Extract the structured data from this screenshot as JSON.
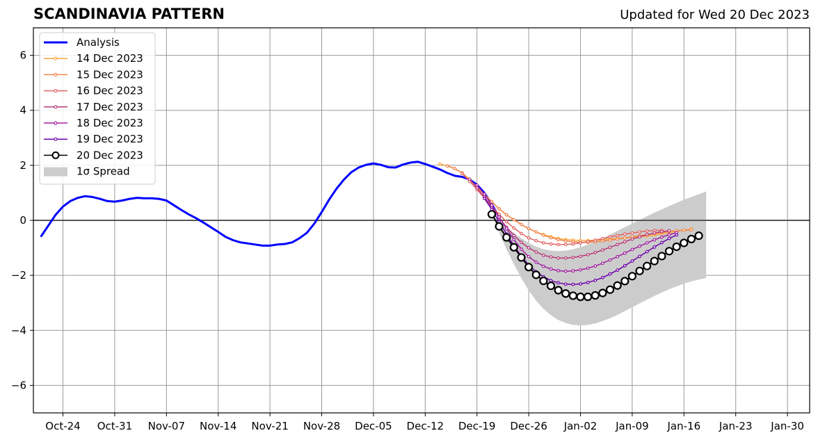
{
  "header": {
    "title": "SCANDINAVIA PATTERN",
    "subtitle": "Updated for Wed 20 Dec 2023"
  },
  "chart_data": {
    "type": "line",
    "title": "SCANDINAVIA PATTERN",
    "xlim": [
      "2023-10-20",
      "2024-02-02"
    ],
    "ylim": [
      -7,
      7
    ],
    "xticks": [
      "2023-10-24",
      "2023-10-31",
      "2023-11-07",
      "2023-11-14",
      "2023-11-21",
      "2023-11-28",
      "2023-12-05",
      "2023-12-12",
      "2023-12-19",
      "2023-12-26",
      "2024-01-02",
      "2024-01-09",
      "2024-01-16",
      "2024-01-23",
      "2024-01-30"
    ],
    "xtick_labels": [
      "Oct-24",
      "Oct-31",
      "Nov-07",
      "Nov-14",
      "Nov-21",
      "Nov-28",
      "Dec-05",
      "Dec-12",
      "Dec-19",
      "Dec-26",
      "Jan-02",
      "Jan-09",
      "Jan-16",
      "Jan-23",
      "Jan-30"
    ],
    "yticks": [
      -6,
      -4,
      -2,
      0,
      2,
      4,
      6
    ],
    "ytick_labels": [
      "−6",
      "−4",
      "−2",
      "0",
      "2",
      "4",
      "6"
    ],
    "grid": true,
    "legend_position": "top-left",
    "analysis": {
      "name": "Analysis",
      "color": "#0000ff",
      "start_date": "2023-10-21",
      "values": [
        -0.6,
        -0.2,
        0.2,
        0.5,
        0.7,
        0.82,
        0.88,
        0.85,
        0.78,
        0.7,
        0.68,
        0.72,
        0.78,
        0.82,
        0.8,
        0.8,
        0.78,
        0.72,
        0.55,
        0.38,
        0.22,
        0.08,
        -0.08,
        -0.25,
        -0.42,
        -0.6,
        -0.72,
        -0.8,
        -0.84,
        -0.88,
        -0.92,
        -0.92,
        -0.88,
        -0.86,
        -0.8,
        -0.65,
        -0.45,
        -0.12,
        0.3,
        0.75,
        1.15,
        1.48,
        1.75,
        1.92,
        2.02,
        2.07,
        2.02,
        1.93,
        1.92,
        2.03,
        2.1,
        2.13,
        2.05,
        1.95,
        1.85,
        1.72,
        1.62,
        1.58,
        1.48,
        1.3,
        1.0,
        0.6,
        0.1
      ]
    },
    "forecasts": [
      {
        "name": "14 Dec 2023",
        "color": "#fca636",
        "start_date": "2023-12-14",
        "values": [
          2.05,
          1.98,
          1.88,
          1.72,
          1.48,
          1.22,
          0.95,
          0.68,
          0.42,
          0.2,
          0.02,
          -0.15,
          -0.3,
          -0.42,
          -0.52,
          -0.6,
          -0.66,
          -0.7,
          -0.72,
          -0.73,
          -0.73,
          -0.72,
          -0.7,
          -0.68,
          -0.66,
          -0.64,
          -0.62,
          -0.6,
          -0.57,
          -0.53,
          -0.49,
          -0.45,
          -0.4,
          -0.36,
          -0.32
        ]
      },
      {
        "name": "15 Dec 2023",
        "color": "#f2844b",
        "start_date": "2023-12-15",
        "values": [
          1.98,
          1.88,
          1.72,
          1.48,
          1.22,
          0.95,
          0.68,
          0.42,
          0.2,
          0.02,
          -0.15,
          -0.3,
          -0.42,
          -0.54,
          -0.63,
          -0.7,
          -0.75,
          -0.78,
          -0.8,
          -0.8,
          -0.78,
          -0.75,
          -0.72,
          -0.68,
          -0.64,
          -0.6,
          -0.56,
          -0.52,
          -0.48,
          -0.44,
          -0.41,
          -0.38,
          -0.36,
          -0.35
        ]
      },
      {
        "name": "16 Dec 2023",
        "color": "#e16462",
        "start_date": "2023-12-17",
        "values": [
          1.7,
          1.42,
          1.12,
          0.82,
          0.52,
          0.22,
          -0.05,
          -0.28,
          -0.48,
          -0.64,
          -0.74,
          -0.82,
          -0.86,
          -0.88,
          -0.88,
          -0.86,
          -0.82,
          -0.77,
          -0.72,
          -0.66,
          -0.6,
          -0.55,
          -0.5,
          -0.46,
          -0.42,
          -0.39,
          -0.37,
          -0.36
        ]
      },
      {
        "name": "17 Dec 2023",
        "color": "#b73779",
        "start_date": "2023-12-18",
        "values": [
          1.5,
          1.18,
          0.85,
          0.48,
          0.1,
          -0.25,
          -0.55,
          -0.8,
          -1.0,
          -1.15,
          -1.27,
          -1.33,
          -1.37,
          -1.37,
          -1.35,
          -1.31,
          -1.25,
          -1.17,
          -1.08,
          -0.98,
          -0.88,
          -0.78,
          -0.68,
          -0.6,
          -0.52,
          -0.46,
          -0.41,
          -0.38
        ]
      },
      {
        "name": "18 Dec 2023",
        "color": "#a020a0",
        "start_date": "2023-12-19",
        "values": [
          1.28,
          0.95,
          0.55,
          0.12,
          -0.3,
          -0.7,
          -1.05,
          -1.32,
          -1.52,
          -1.67,
          -1.77,
          -1.83,
          -1.85,
          -1.84,
          -1.8,
          -1.74,
          -1.66,
          -1.56,
          -1.44,
          -1.32,
          -1.19,
          -1.06,
          -0.94,
          -0.82,
          -0.71,
          -0.61,
          -0.52,
          -0.45
        ]
      },
      {
        "name": "19 Dec 2023",
        "color": "#6a00a8",
        "start_date": "2023-12-20",
        "values": [
          0.8,
          0.4,
          -0.05,
          -0.5,
          -0.92,
          -1.3,
          -1.62,
          -1.87,
          -2.05,
          -2.19,
          -2.27,
          -2.32,
          -2.33,
          -2.31,
          -2.26,
          -2.18,
          -2.08,
          -1.95,
          -1.81,
          -1.65,
          -1.48,
          -1.31,
          -1.14,
          -0.97,
          -0.81,
          -0.66,
          -0.53
        ]
      },
      {
        "name": "20 Dec 2023",
        "color": "#000000",
        "start_date": "2023-12-21",
        "values": [
          0.22,
          -0.22,
          -0.62,
          -0.98,
          -1.35,
          -1.7,
          -1.98,
          -2.2,
          -2.38,
          -2.54,
          -2.66,
          -2.74,
          -2.78,
          -2.78,
          -2.73,
          -2.64,
          -2.52,
          -2.37,
          -2.21,
          -2.03,
          -1.84,
          -1.66,
          -1.48,
          -1.3,
          -1.12,
          -0.96,
          -0.82,
          -0.68,
          -0.56
        ]
      }
    ],
    "spread": {
      "name": "1σ Spread",
      "color": "#cccccc",
      "start_date": "2023-12-21",
      "upper": [
        0.22,
        -0.05,
        -0.25,
        -0.45,
        -0.65,
        -0.82,
        -0.95,
        -1.05,
        -1.1,
        -1.12,
        -1.1,
        -1.05,
        -0.98,
        -0.88,
        -0.77,
        -0.65,
        -0.52,
        -0.38,
        -0.25,
        -0.12,
        0.02,
        0.15,
        0.28,
        0.4,
        0.52,
        0.64,
        0.75,
        0.85,
        0.95,
        1.05
      ],
      "lower": [
        0.22,
        -0.45,
        -1.05,
        -1.6,
        -2.1,
        -2.55,
        -2.92,
        -3.22,
        -3.45,
        -3.62,
        -3.73,
        -3.8,
        -3.82,
        -3.8,
        -3.75,
        -3.66,
        -3.56,
        -3.44,
        -3.3,
        -3.16,
        -3.02,
        -2.88,
        -2.75,
        -2.62,
        -2.5,
        -2.4,
        -2.3,
        -2.22,
        -2.15,
        -2.1
      ]
    },
    "legend": [
      {
        "label": "Analysis",
        "series": "analysis"
      },
      {
        "label": "14 Dec 2023",
        "series": "f0"
      },
      {
        "label": "15 Dec 2023",
        "series": "f1"
      },
      {
        "label": "16 Dec 2023",
        "series": "f2"
      },
      {
        "label": "17 Dec 2023",
        "series": "f3"
      },
      {
        "label": "18 Dec 2023",
        "series": "f4"
      },
      {
        "label": "19 Dec 2023",
        "series": "f5"
      },
      {
        "label": "20 Dec 2023",
        "series": "f6"
      },
      {
        "label": "1σ Spread",
        "series": "spread"
      }
    ]
  }
}
